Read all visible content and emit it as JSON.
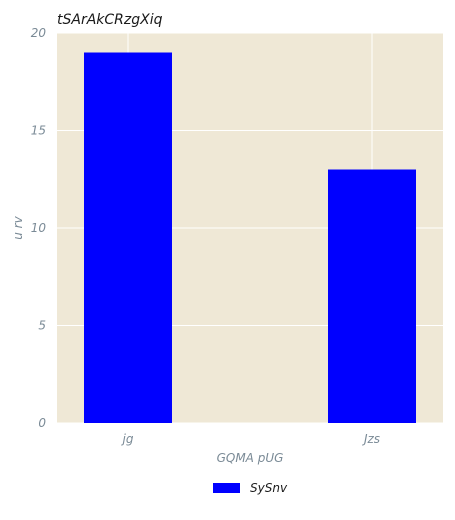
{
  "chart_data": {
    "type": "bar",
    "title": "tSArAkCRzgXiq",
    "xlabel": "GQMA pUG",
    "ylabel": "u rv",
    "categories": [
      "jg",
      "Jzs"
    ],
    "series": [
      {
        "name": "SySnv",
        "values": [
          19,
          13
        ],
        "color": "#0000ff"
      }
    ],
    "ylim": [
      0,
      20
    ],
    "yticks": [
      0,
      5,
      10,
      15,
      20
    ],
    "grid": true,
    "legend_position": "bottom-center",
    "background_color": "#efe8d6"
  }
}
